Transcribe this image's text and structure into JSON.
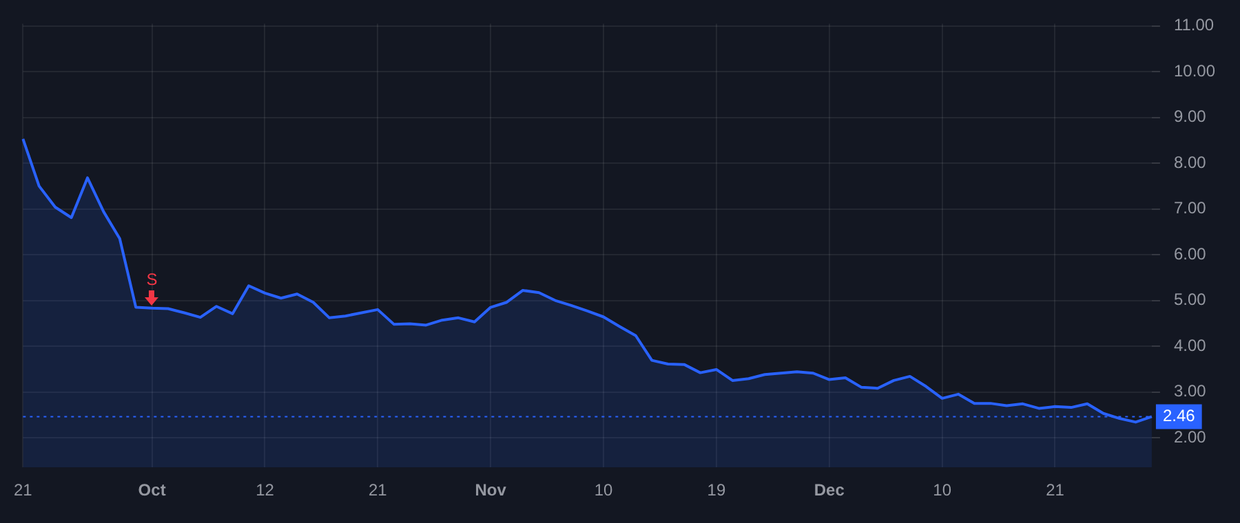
{
  "chart_data": {
    "type": "area",
    "categories": [
      "21",
      null,
      null,
      null,
      null,
      null,
      null,
      null,
      "Oct",
      null,
      null,
      null,
      null,
      null,
      null,
      "12",
      null,
      null,
      null,
      null,
      null,
      null,
      "21",
      null,
      null,
      null,
      null,
      null,
      null,
      "Nov",
      null,
      null,
      null,
      null,
      null,
      null,
      "10",
      null,
      null,
      null,
      null,
      null,
      null,
      "19",
      null,
      null,
      null,
      null,
      null,
      null,
      "Dec",
      null,
      null,
      null,
      null,
      null,
      null,
      "10",
      null,
      null,
      null,
      null,
      null,
      null,
      "21",
      null,
      null,
      null,
      null,
      null,
      null
    ],
    "series": [
      {
        "color": "#2962ff",
        "values": [
          8.53,
          7.5,
          7.04,
          6.81,
          7.68,
          6.94,
          6.35,
          4.85,
          4.83,
          4.82,
          4.73,
          4.63,
          4.87,
          4.71,
          5.32,
          5.16,
          5.05,
          5.14,
          4.96,
          4.62,
          4.66,
          4.73,
          4.8,
          4.48,
          4.49,
          4.46,
          4.57,
          4.62,
          4.53,
          4.85,
          4.96,
          5.22,
          5.17,
          5.0,
          4.89,
          4.77,
          4.64,
          4.43,
          4.23,
          3.69,
          3.61,
          3.6,
          3.42,
          3.49,
          3.25,
          3.29,
          3.38,
          3.41,
          3.44,
          3.41,
          3.27,
          3.31,
          3.1,
          3.08,
          3.25,
          3.34,
          3.12,
          2.86,
          2.95,
          2.75,
          2.75,
          2.7,
          2.74,
          2.64,
          2.68,
          2.66,
          2.74,
          2.53,
          2.42,
          2.34,
          2.46
        ]
      }
    ],
    "ylim": [
      1.35,
      11.05
    ],
    "yticks": [
      {
        "value": 2,
        "label": "2.00"
      },
      {
        "value": 3,
        "label": "3.00"
      },
      {
        "value": 4,
        "label": "4.00"
      },
      {
        "value": 5,
        "label": "5.00"
      },
      {
        "value": 6,
        "label": "6.00"
      },
      {
        "value": 7,
        "label": "7.00"
      },
      {
        "value": 8,
        "label": "8.00"
      },
      {
        "value": 9,
        "label": "9.00"
      },
      {
        "value": 10,
        "label": "10.00"
      },
      {
        "value": 11,
        "label": "11.00"
      }
    ],
    "ref_lines": [
      {
        "axis": "y",
        "value": 2.46,
        "label": "2.46",
        "color": "#2962ff",
        "line_style": "dotted"
      }
    ],
    "annotations": [
      {
        "text": "S",
        "x": "Oct",
        "y": 4.83
      }
    ],
    "grid": true,
    "legend": false,
    "marker": "none",
    "line_style": "solid"
  }
}
